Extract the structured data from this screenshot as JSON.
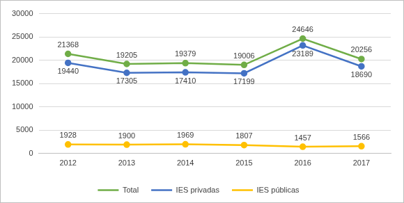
{
  "chart_data": {
    "type": "line",
    "categories": [
      "2012",
      "2013",
      "2014",
      "2015",
      "2016",
      "2017"
    ],
    "series": [
      {
        "name": "Total",
        "color": "#70ad47",
        "marker": "circle",
        "values": [
          21368,
          19205,
          19379,
          19006,
          24646,
          20256
        ]
      },
      {
        "name": "IES privadas",
        "color": "#4472c4",
        "marker": "circle",
        "values": [
          19440,
          17305,
          17410,
          17199,
          23189,
          18690
        ]
      },
      {
        "name": "IES públicas",
        "color": "#ffc000",
        "marker": "circle",
        "values": [
          1928,
          1900,
          1969,
          1807,
          1457,
          1566
        ]
      }
    ],
    "ylim": [
      0,
      30000
    ],
    "yticks": [
      0,
      5000,
      10000,
      15000,
      20000,
      25000,
      30000
    ],
    "grid": true,
    "legend": "bottom",
    "data_labels": true
  }
}
